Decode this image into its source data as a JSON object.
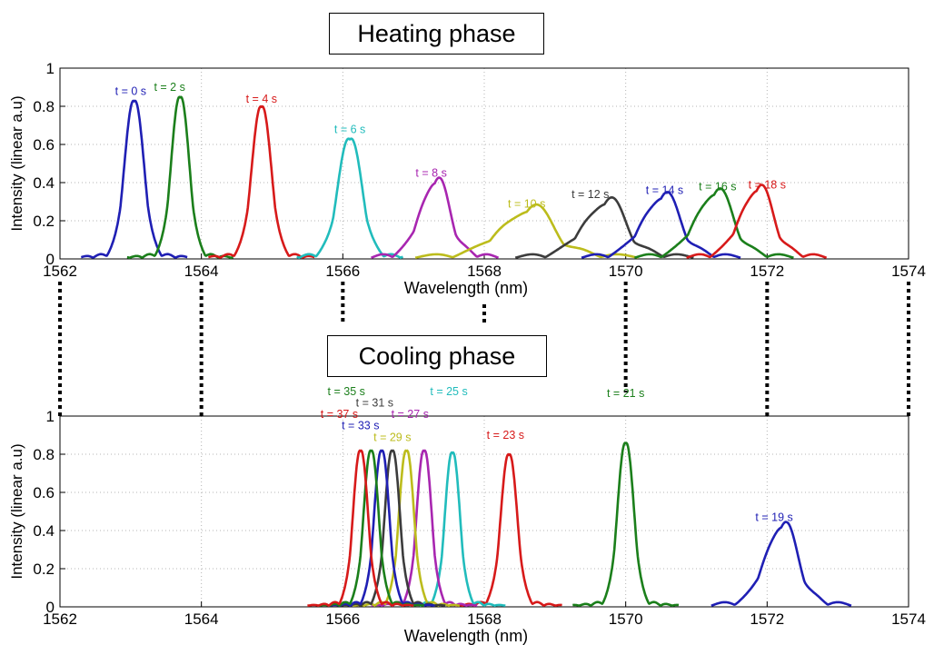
{
  "top_title": "Heating phase",
  "bottom_title": "Cooling phase",
  "colors": {
    "blue": "#1f1fb4",
    "green": "#1b7f1b",
    "red": "#d71a1a",
    "cyan": "#21bcbc",
    "magenta": "#a826b0",
    "olive": "#bcbc1c",
    "gray": "#3c3c3c",
    "grid": "#b4b4b4"
  },
  "chart_data": [
    {
      "type": "line",
      "title": "Heating phase",
      "xlabel": "Wavelength (nm)",
      "ylabel": "Intensity (linear a.u)",
      "xlim": [
        1562,
        1574
      ],
      "ylim": [
        0,
        1
      ],
      "xticks": [
        1562,
        1564,
        1566,
        1568,
        1570,
        1572,
        1574
      ],
      "yticks": [
        0,
        0.2,
        0.4,
        0.6,
        0.8,
        1
      ],
      "grid": true,
      "series": [
        {
          "name": "t = 0 s",
          "color": "#1f1fb4",
          "center": 1563.05,
          "peak": 0.82,
          "width": 0.13,
          "label_x": 1563.0,
          "label_y": 0.86,
          "x": [
            1562.3,
            1562.7,
            1562.9,
            1563.05,
            1563.2,
            1563.4,
            1563.6,
            1563.9
          ]
        },
        {
          "name": "t = 2 s",
          "color": "#1b7f1b",
          "center": 1563.7,
          "peak": 0.84,
          "width": 0.12,
          "label_x": 1563.55,
          "label_y": 0.88
        },
        {
          "name": "t = 4 s",
          "color": "#d71a1a",
          "center": 1564.85,
          "peak": 0.79,
          "width": 0.13,
          "label_x": 1564.85,
          "label_y": 0.82
        },
        {
          "name": "t = 6 s",
          "color": "#21bcbc",
          "center": 1566.1,
          "peak": 0.62,
          "width": 0.16,
          "label_x": 1566.1,
          "label_y": 0.66
        },
        {
          "name": "t = 8 s",
          "color": "#a826b0",
          "center": 1567.3,
          "peak": 0.39,
          "width": 0.2,
          "label_x": 1567.25,
          "label_y": 0.43
        },
        {
          "name": "t = 10 s",
          "color": "#bcbc1c",
          "center": 1568.6,
          "peak": 0.24,
          "width": 0.35,
          "label_x": 1568.6,
          "label_y": 0.27
        },
        {
          "name": "t = 12 s",
          "color": "#3c3c3c",
          "center": 1569.7,
          "peak": 0.28,
          "width": 0.28,
          "label_x": 1569.5,
          "label_y": 0.32
        },
        {
          "name": "t = 14 s",
          "color": "#1f1fb4",
          "center": 1570.5,
          "peak": 0.31,
          "width": 0.25,
          "label_x": 1570.55,
          "label_y": 0.34
        },
        {
          "name": "t = 16 s",
          "color": "#1b7f1b",
          "center": 1571.25,
          "peak": 0.33,
          "width": 0.25,
          "label_x": 1571.3,
          "label_y": 0.36
        },
        {
          "name": "t = 18 s",
          "color": "#d71a1a",
          "center": 1571.85,
          "peak": 0.35,
          "width": 0.22,
          "label_x": 1572.0,
          "label_y": 0.37
        }
      ]
    },
    {
      "type": "line",
      "title": "Cooling phase",
      "xlabel": "Wavelength (nm)",
      "ylabel": "Intensity (linear a.u)",
      "xlim": [
        1562,
        1574
      ],
      "ylim": [
        0,
        1
      ],
      "xticks": [
        1562,
        1564,
        1566,
        1568,
        1570,
        1572,
        1574
      ],
      "yticks": [
        0,
        0.2,
        0.4,
        0.6,
        0.8,
        1
      ],
      "grid": true,
      "series": [
        {
          "name": "t = 19 s",
          "color": "#1f1fb4",
          "center": 1572.2,
          "peak": 0.41,
          "width": 0.22,
          "label_x": 1572.1,
          "label_y": 0.45
        },
        {
          "name": "t = 21 s",
          "color": "#1b7f1b",
          "center": 1570.0,
          "peak": 0.85,
          "width": 0.11,
          "label_x": 1570.0,
          "label_y": 1.1
        },
        {
          "name": "t = 23 s",
          "color": "#d71a1a",
          "center": 1568.35,
          "peak": 0.79,
          "width": 0.11,
          "label_x": 1568.3,
          "label_y": 0.88
        },
        {
          "name": "t = 25 s",
          "color": "#21bcbc",
          "center": 1567.55,
          "peak": 0.8,
          "width": 0.1,
          "label_x": 1567.5,
          "label_y": 1.11
        },
        {
          "name": "t = 27 s",
          "color": "#a826b0",
          "center": 1567.15,
          "peak": 0.81,
          "width": 0.1,
          "label_x": 1566.95,
          "label_y": 0.99
        },
        {
          "name": "t = 29 s",
          "color": "#bcbc1c",
          "center": 1566.9,
          "peak": 0.81,
          "width": 0.1,
          "label_x": 1566.7,
          "label_y": 0.87
        },
        {
          "name": "t = 31 s",
          "color": "#3c3c3c",
          "center": 1566.7,
          "peak": 0.81,
          "width": 0.1,
          "label_x": 1566.45,
          "label_y": 1.05
        },
        {
          "name": "t = 33 s",
          "color": "#1f1fb4",
          "center": 1566.55,
          "peak": 0.81,
          "width": 0.1,
          "label_x": 1566.25,
          "label_y": 0.93
        },
        {
          "name": "t = 35 s",
          "color": "#1b7f1b",
          "center": 1566.4,
          "peak": 0.81,
          "width": 0.1,
          "label_x": 1566.05,
          "label_y": 1.11
        },
        {
          "name": "t = 37 s",
          "color": "#d71a1a",
          "center": 1566.25,
          "peak": 0.81,
          "width": 0.1,
          "label_x": 1565.95,
          "label_y": 0.99
        }
      ]
    }
  ]
}
